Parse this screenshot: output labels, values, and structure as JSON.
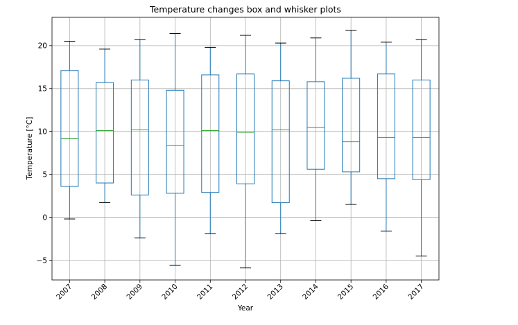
{
  "chart_data": {
    "type": "box",
    "title": "Temperature changes box and whisker plots",
    "xlabel": "Year",
    "ylabel": "Temperature [°C]",
    "ylim": [
      -7.3,
      23.3
    ],
    "yticks": [
      -5,
      0,
      5,
      10,
      15,
      20
    ],
    "grid": true,
    "colors": {
      "box": "#1f77b4",
      "median": "#2ca02c",
      "whisker": "#1f77b4",
      "cap": "#000000",
      "grid": "#b0b0b0"
    },
    "categories": [
      "2007",
      "2008",
      "2009",
      "2010",
      "2011",
      "2012",
      "2013",
      "2014",
      "2015",
      "2016",
      "2017"
    ],
    "boxes": [
      {
        "label": "2007",
        "whislo": -0.2,
        "q1": 3.6,
        "med": 9.2,
        "q3": 17.1,
        "whishi": 20.5
      },
      {
        "label": "2008",
        "whislo": 1.7,
        "q1": 4.0,
        "med": 10.1,
        "q3": 15.7,
        "whishi": 19.6
      },
      {
        "label": "2009",
        "whislo": -2.4,
        "q1": 2.6,
        "med": 10.2,
        "q3": 16.0,
        "whishi": 20.7
      },
      {
        "label": "2010",
        "whislo": -5.6,
        "q1": 2.8,
        "med": 8.4,
        "q3": 14.8,
        "whishi": 21.4
      },
      {
        "label": "2011",
        "whislo": -1.9,
        "q1": 2.9,
        "med": 10.1,
        "q3": 16.6,
        "whishi": 19.8
      },
      {
        "label": "2012",
        "whislo": -5.9,
        "q1": 3.9,
        "med": 9.9,
        "q3": 16.7,
        "whishi": 21.2
      },
      {
        "label": "2013",
        "whislo": -1.9,
        "q1": 1.7,
        "med": 10.2,
        "q3": 15.9,
        "whishi": 20.3
      },
      {
        "label": "2014",
        "whislo": -0.4,
        "q1": 5.6,
        "med": 10.5,
        "q3": 15.8,
        "whishi": 20.9
      },
      {
        "label": "2015",
        "whislo": 1.5,
        "q1": 5.3,
        "med": 8.8,
        "q3": 16.2,
        "whishi": 21.8
      },
      {
        "label": "2016",
        "whislo": -1.6,
        "q1": 4.5,
        "med": 9.3,
        "q3": 16.7,
        "whishi": 20.4
      },
      {
        "label": "2017",
        "whislo": -4.5,
        "q1": 4.4,
        "med": 9.3,
        "q3": 16.0,
        "whishi": 20.7
      }
    ]
  }
}
